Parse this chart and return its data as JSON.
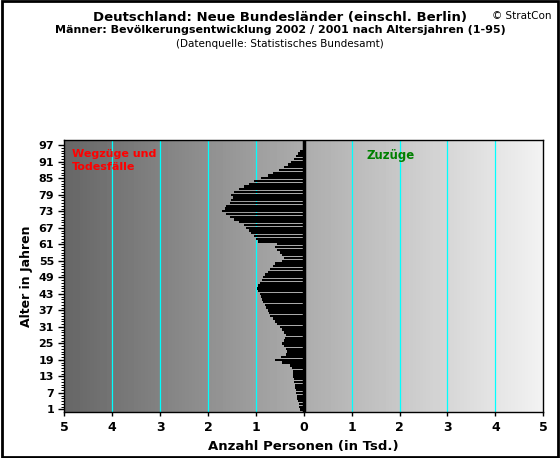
{
  "title_line1": "Deutschland: Neue Bundesländer (einschl. Berlin)",
  "title_line2": "Männer: Bevölkerungsentwicklung 2002 / 2001 nach Altersjahren (1-95)",
  "title_line3": "(Datenquelle: Statistisches Bundesamt)",
  "copyright": "© StratCon",
  "xlabel": "Anzahl Personen (in Tsd.)",
  "ylabel": "Alter in Jahren",
  "label_left": "Wegzüge und\nTodesfälle",
  "label_right": "Zuzüge",
  "xlim_left": -5,
  "xlim_right": 5,
  "ylim_bottom": 0,
  "ylim_top": 99,
  "ytick_positions": [
    1,
    7,
    13,
    19,
    25,
    31,
    37,
    43,
    49,
    55,
    61,
    67,
    73,
    79,
    85,
    91,
    97
  ],
  "xtick_positions": [
    -5,
    -4,
    -3,
    -2,
    -1,
    0,
    1,
    2,
    3,
    4,
    5
  ],
  "xtick_labels": [
    "5",
    "4",
    "3",
    "2",
    "1",
    "0",
    "1",
    "2",
    "3",
    "4",
    "5"
  ],
  "cyan_lines": [
    -4,
    -3,
    -2,
    -1,
    0,
    1,
    2,
    3,
    4
  ],
  "bar_color": "#000000",
  "fig_bg": "#ffffff",
  "outer_border_color": "#000000",
  "ages": [
    1,
    2,
    3,
    4,
    5,
    6,
    7,
    8,
    9,
    10,
    11,
    12,
    13,
    14,
    15,
    16,
    17,
    18,
    19,
    20,
    21,
    22,
    23,
    24,
    25,
    26,
    27,
    28,
    29,
    30,
    31,
    32,
    33,
    34,
    35,
    36,
    37,
    38,
    39,
    40,
    41,
    42,
    43,
    44,
    45,
    46,
    47,
    48,
    49,
    50,
    51,
    52,
    53,
    54,
    55,
    56,
    57,
    58,
    59,
    60,
    61,
    62,
    63,
    64,
    65,
    66,
    67,
    68,
    69,
    70,
    71,
    72,
    73,
    74,
    75,
    76,
    77,
    78,
    79,
    80,
    81,
    82,
    83,
    84,
    85,
    86,
    87,
    88,
    89,
    90,
    91,
    92,
    93,
    94,
    95
  ],
  "values": [
    0.08,
    0.1,
    0.11,
    0.13,
    0.14,
    0.15,
    0.16,
    0.17,
    0.18,
    0.19,
    0.2,
    0.21,
    0.22,
    0.22,
    0.23,
    0.24,
    0.28,
    0.45,
    0.6,
    0.48,
    0.38,
    0.35,
    0.38,
    0.42,
    0.45,
    0.42,
    0.4,
    0.38,
    0.42,
    0.45,
    0.5,
    0.55,
    0.6,
    0.65,
    0.7,
    0.72,
    0.75,
    0.78,
    0.8,
    0.85,
    0.88,
    0.9,
    0.92,
    0.95,
    0.98,
    0.95,
    0.92,
    0.88,
    0.85,
    0.8,
    0.75,
    0.7,
    0.65,
    0.6,
    0.45,
    0.42,
    0.45,
    0.5,
    0.55,
    0.6,
    0.55,
    0.95,
    1.0,
    1.05,
    1.1,
    1.15,
    1.2,
    1.25,
    1.35,
    1.45,
    1.55,
    1.62,
    1.7,
    1.65,
    1.62,
    1.55,
    1.52,
    1.48,
    1.52,
    1.45,
    1.35,
    1.25,
    1.15,
    1.05,
    0.9,
    0.75,
    0.65,
    0.52,
    0.42,
    0.32,
    0.26,
    0.2,
    0.16,
    0.12,
    0.08
  ]
}
